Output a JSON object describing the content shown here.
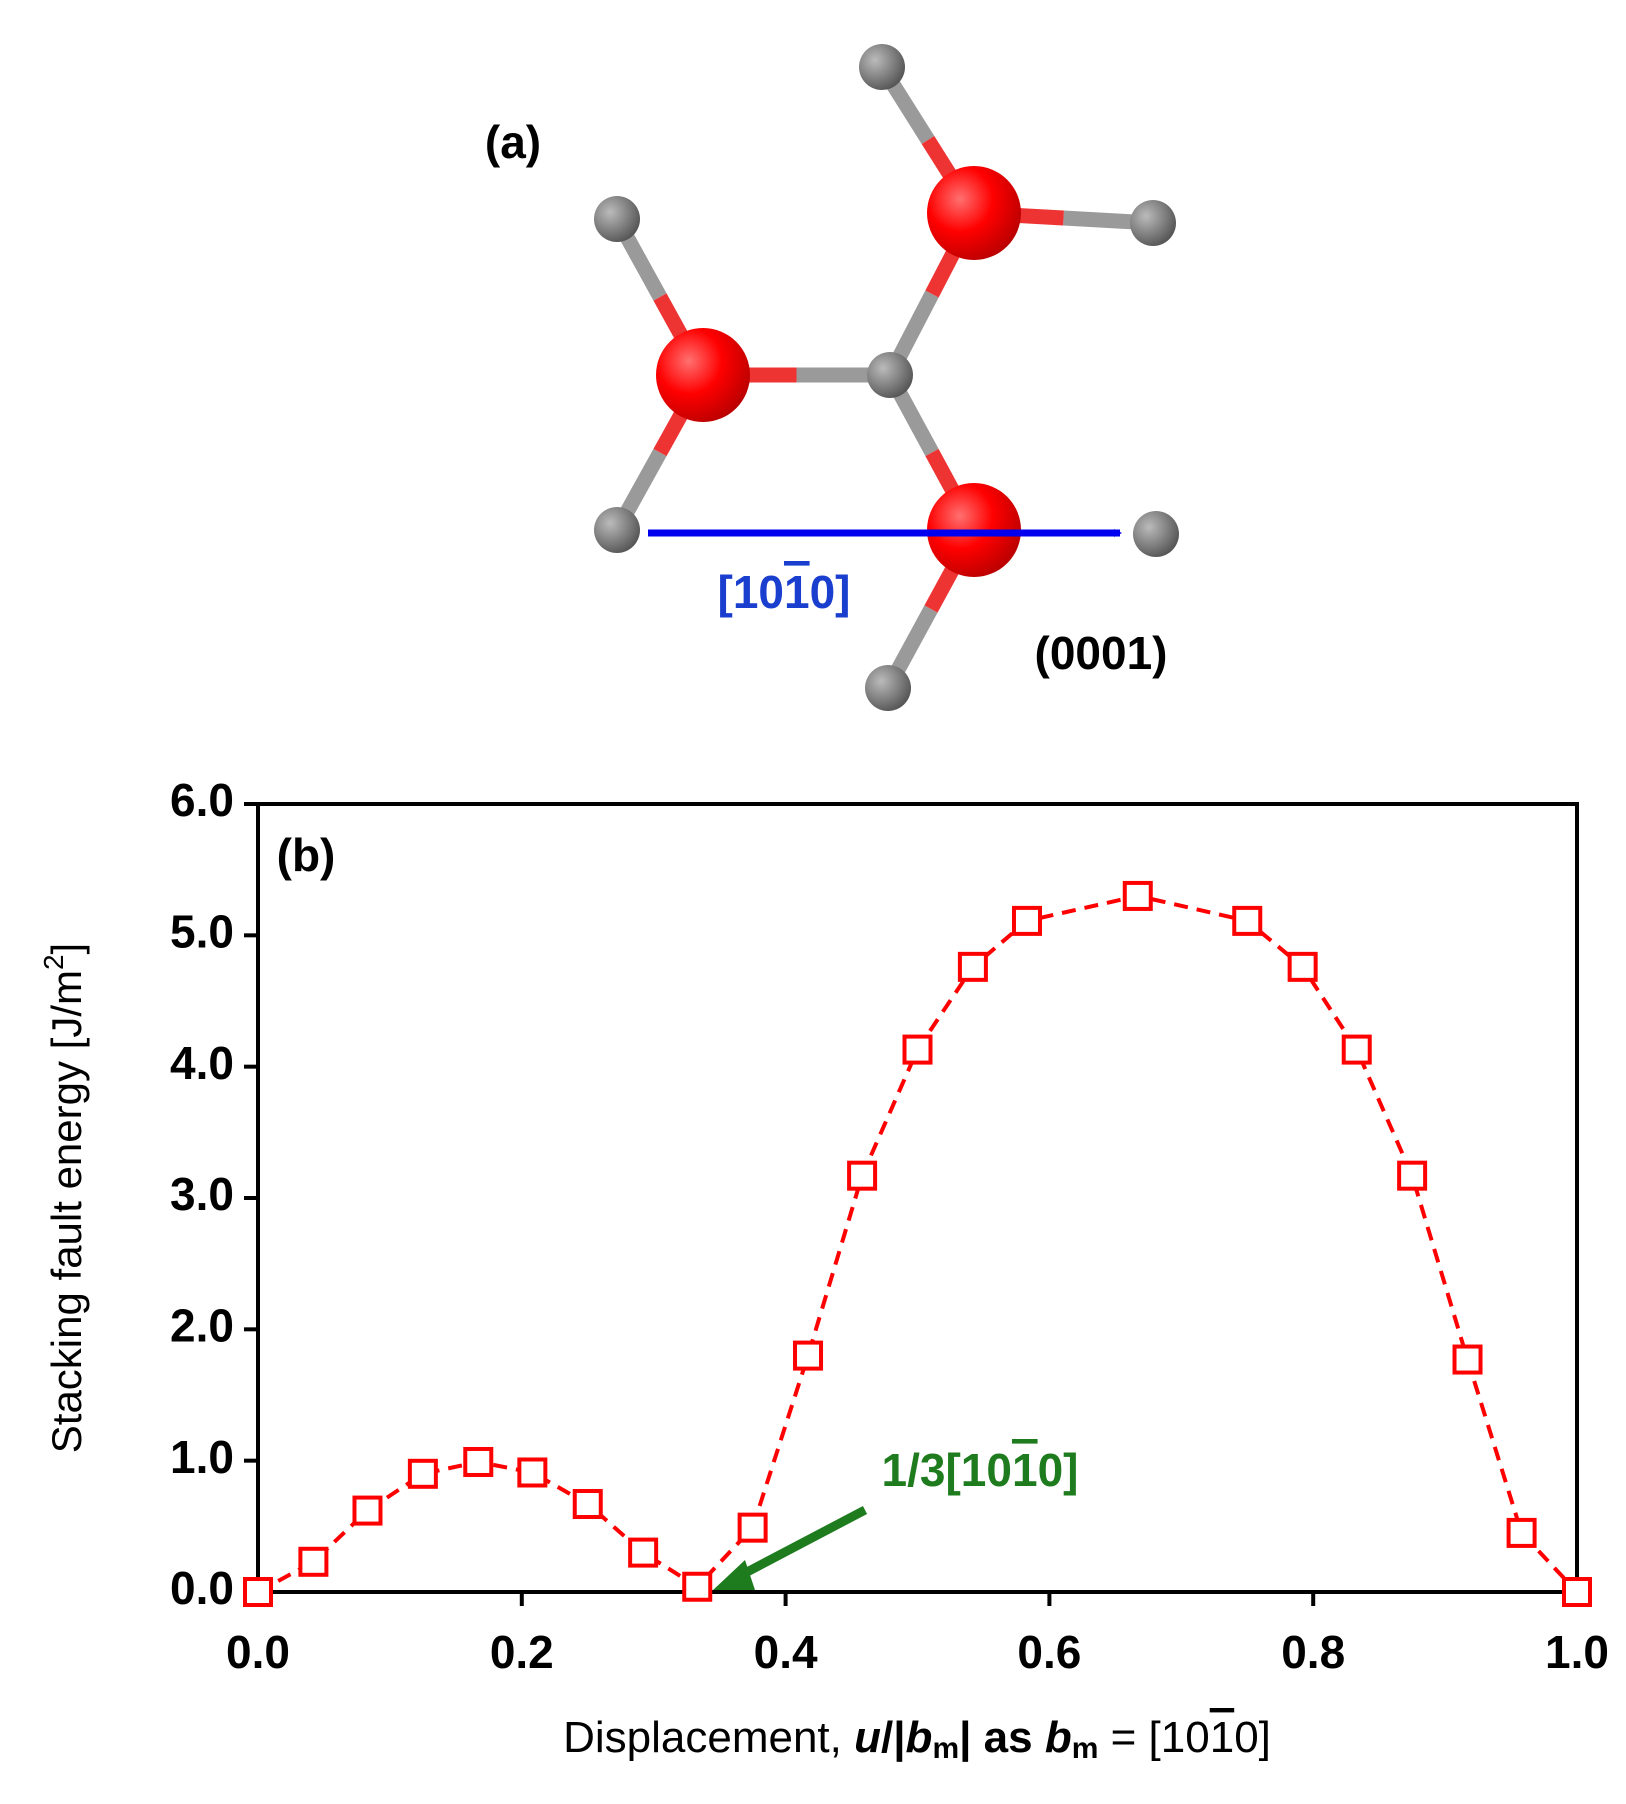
{
  "panel_a": {
    "label": "(a)",
    "direction_label": [
      "[10",
      "1",
      "0]"
    ],
    "plane_label": "(0001)"
  },
  "chart_data": {
    "type": "line",
    "panel_label": "(b)",
    "xlabel": [
      "Displacement, ",
      "u",
      "/|",
      "b",
      "m",
      "| as ",
      "b",
      "m",
      " = [10",
      "1",
      "0]"
    ],
    "ylabel": [
      "Stacking fault energy [J/m",
      "2",
      "]"
    ],
    "annotation": [
      "1/3[10",
      "1",
      "0]"
    ],
    "x": [
      0,
      0.042,
      0.083,
      0.125,
      0.167,
      0.208,
      0.25,
      0.292,
      0.333,
      0.375,
      0.417,
      0.458,
      0.5,
      0.542,
      0.583,
      0.667,
      0.75,
      0.792,
      0.833,
      0.875,
      0.917,
      0.958,
      1.0
    ],
    "series": [
      {
        "color": "#ff0000",
        "values": [
          0,
          0.23,
          0.62,
          0.9,
          0.99,
          0.91,
          0.67,
          0.3,
          0.04,
          0.49,
          1.8,
          3.17,
          4.13,
          4.76,
          5.11,
          5.3,
          5.11,
          4.76,
          4.13,
          3.17,
          1.77,
          0.45,
          0
        ]
      }
    ],
    "xlim": [
      0,
      1.0
    ],
    "ylim": [
      0,
      6.0
    ],
    "xticks": [
      {
        "value": 0,
        "label": "0.0"
      },
      0.2,
      0.4,
      0.6,
      0.8,
      {
        "value": 1,
        "label": "1.0"
      }
    ],
    "yticks": [
      {
        "value": 0,
        "label": "0.0"
      },
      {
        "value": 1,
        "label": "1.0"
      },
      {
        "value": 2,
        "label": "2.0"
      },
      {
        "value": 3,
        "label": "3.0"
      },
      {
        "value": 4,
        "label": "4.0"
      },
      {
        "value": 5,
        "label": "5.0"
      },
      {
        "value": 6,
        "label": "6.0"
      }
    ],
    "grid": false
  }
}
